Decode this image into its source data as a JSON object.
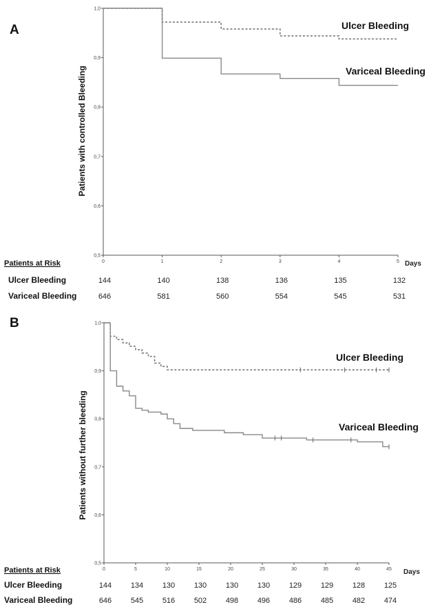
{
  "panels": [
    {
      "letter": "A",
      "ylabel": "Patients with controlled Bleeding",
      "xunits": "Days",
      "chart_data": {
        "type": "line",
        "step": true,
        "xlim": [
          0,
          5
        ],
        "ylim": [
          0.5,
          1.0
        ],
        "xticks": [
          "0",
          "1",
          "2",
          "3",
          "4",
          "5"
        ],
        "yticks": [
          "0,5",
          "0,6",
          "0,7",
          "0,8",
          "0,9",
          "1,0"
        ],
        "series": [
          {
            "name": "Ulcer Bleeding",
            "style": "dotted",
            "points": [
              [
                0,
                1.0
              ],
              [
                1,
                0.972
              ],
              [
                2,
                0.958
              ],
              [
                3,
                0.944
              ],
              [
                4,
                0.938
              ],
              [
                5,
                0.938
              ]
            ],
            "censored": []
          },
          {
            "name": "Variceal Bleeding",
            "style": "solid",
            "points": [
              [
                0,
                1.0
              ],
              [
                1,
                0.899
              ],
              [
                2,
                0.867
              ],
              [
                3,
                0.858
              ],
              [
                4,
                0.844
              ],
              [
                5,
                0.844
              ]
            ],
            "censored": []
          }
        ]
      },
      "risk_table": {
        "header": "Patients at Risk",
        "rows": [
          {
            "label": "Ulcer Bleeding",
            "values": [
              "144",
              "140",
              "138",
              "136",
              "135",
              "132"
            ]
          },
          {
            "label": "Variceal Bleeding",
            "values": [
              "646",
              "581",
              "560",
              "554",
              "545",
              "531"
            ]
          }
        ]
      }
    },
    {
      "letter": "B",
      "ylabel": "Patients without further bleeding",
      "xunits": "Days",
      "chart_data": {
        "type": "line",
        "step": true,
        "xlim": [
          0,
          45
        ],
        "ylim": [
          0.5,
          1.0
        ],
        "xticks": [
          "0",
          "5",
          "10",
          "15",
          "20",
          "25",
          "30",
          "35",
          "40",
          "45"
        ],
        "yticks": [
          "0,5",
          "0,6",
          "0,7",
          "0,8",
          "0,9",
          "1,0"
        ],
        "series": [
          {
            "name": "Ulcer Bleeding",
            "style": "dotted",
            "points": [
              [
                0,
                1.0
              ],
              [
                1,
                0.972
              ],
              [
                2,
                0.965
              ],
              [
                3,
                0.958
              ],
              [
                4,
                0.951
              ],
              [
                5,
                0.944
              ],
              [
                6,
                0.937
              ],
              [
                7,
                0.93
              ],
              [
                8,
                0.916
              ],
              [
                9,
                0.909
              ],
              [
                10,
                0.902
              ],
              [
                45,
                0.902
              ]
            ],
            "censored": [
              31,
              38,
              43,
              45
            ]
          },
          {
            "name": "Variceal Bleeding",
            "style": "solid",
            "points": [
              [
                0,
                1.0
              ],
              [
                1,
                0.9
              ],
              [
                2,
                0.868
              ],
              [
                3,
                0.858
              ],
              [
                4,
                0.848
              ],
              [
                5,
                0.822
              ],
              [
                6,
                0.818
              ],
              [
                7,
                0.814
              ],
              [
                9,
                0.81
              ],
              [
                10,
                0.8
              ],
              [
                11,
                0.79
              ],
              [
                12,
                0.78
              ],
              [
                14,
                0.776
              ],
              [
                19,
                0.771
              ],
              [
                22,
                0.767
              ],
              [
                25,
                0.76
              ],
              [
                32,
                0.756
              ],
              [
                40,
                0.752
              ],
              [
                44,
                0.742
              ],
              [
                45,
                0.742
              ]
            ],
            "censored": [
              27,
              28,
              33,
              39,
              45
            ]
          }
        ]
      },
      "risk_table": {
        "header": "Patients at Risk",
        "rows": [
          {
            "label": "Ulcer Bleeding",
            "values": [
              "144",
              "134",
              "130",
              "130",
              "130",
              "130",
              "129",
              "129",
              "128",
              "125"
            ]
          },
          {
            "label": "Variceal Bleeding",
            "values": [
              "646",
              "545",
              "516",
              "502",
              "498",
              "496",
              "486",
              "485",
              "482",
              "474"
            ]
          }
        ]
      }
    }
  ]
}
